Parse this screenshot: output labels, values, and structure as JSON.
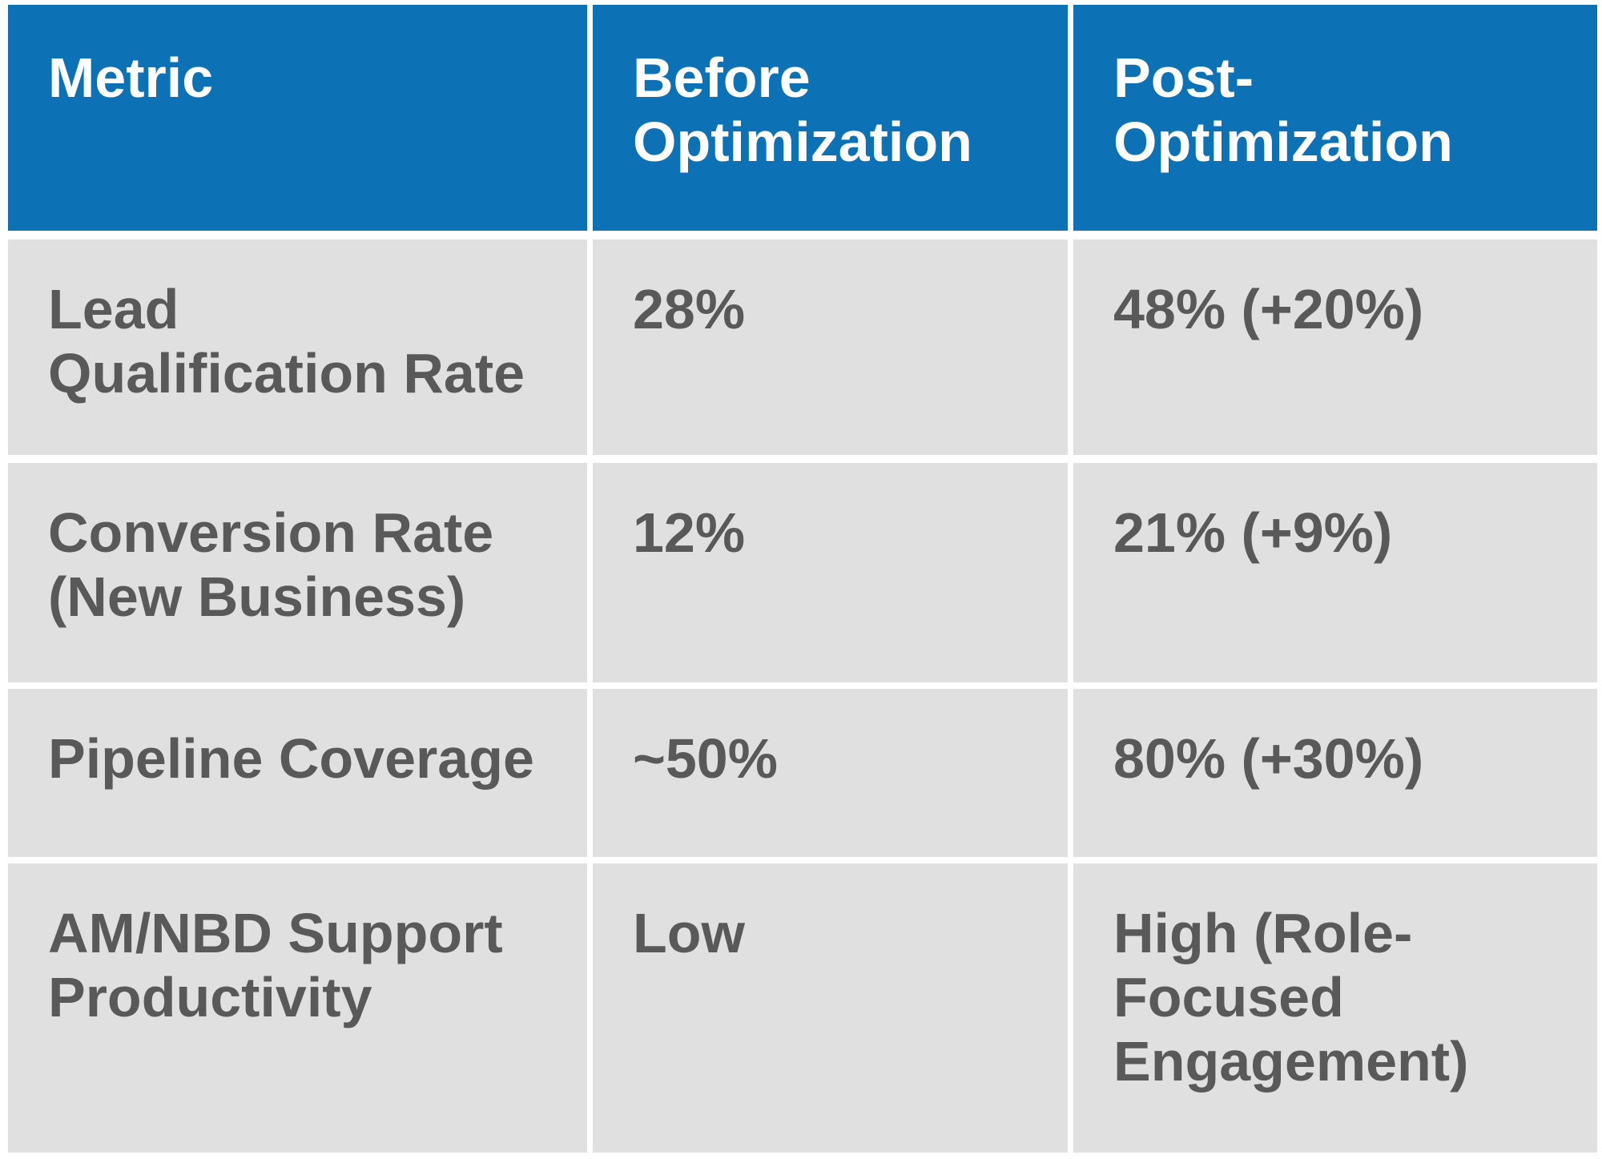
{
  "colors": {
    "header_background": "#0d72b5",
    "header_text": "#ffffff",
    "row_background": "#e0e0e0",
    "row_text": "#595959",
    "divider": "#ffffff"
  },
  "table": {
    "columns": [
      {
        "label": "Metric"
      },
      {
        "label": "Before\nOptimization"
      },
      {
        "label": "Post-\nOptimization"
      }
    ],
    "rows": [
      {
        "metric": "Lead\nQualification Rate",
        "before": "28%",
        "post": "48% (+20%)"
      },
      {
        "metric": "Conversion Rate\n(New Business)",
        "before": "12%",
        "post": "21% (+9%)"
      },
      {
        "metric": "Pipeline Coverage",
        "before": "~50%",
        "post": "80% (+30%)"
      },
      {
        "metric": "AM/NBD Support\nProductivity",
        "before": "Low",
        "post": "High (Role-\nFocused\nEngagement)"
      }
    ]
  },
  "chart_data": {
    "type": "table",
    "title": "",
    "columns": [
      "Metric",
      "Before Optimization",
      "Post-Optimization"
    ],
    "rows": [
      [
        "Lead Qualification Rate",
        "28%",
        "48% (+20%)"
      ],
      [
        "Conversion Rate (New Business)",
        "12%",
        "21% (+9%)"
      ],
      [
        "Pipeline Coverage",
        "~50%",
        "80% (+30%)"
      ],
      [
        "AM/NBD Support Productivity",
        "Low",
        "High (Role-Focused Engagement)"
      ]
    ]
  }
}
